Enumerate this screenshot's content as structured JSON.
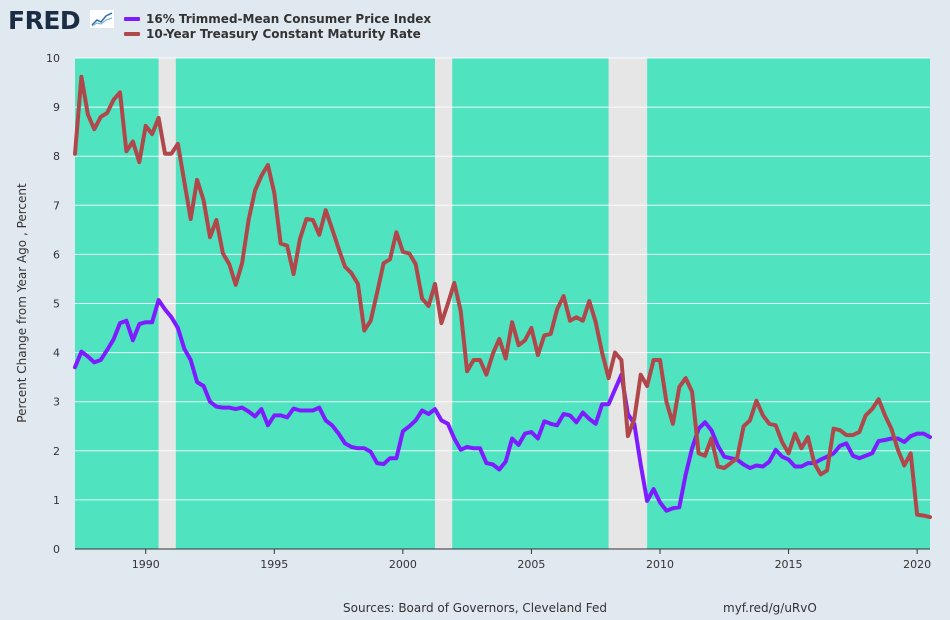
{
  "header": {
    "logo_text": "FRED",
    "legend": [
      {
        "label": "16% Trimmed-Mean Consumer Price Index",
        "color": "#7f1cff"
      },
      {
        "label": "10-Year Treasury Constant Maturity Rate",
        "color": "#b0484b"
      }
    ]
  },
  "footer": {
    "sources": "Sources: Board of Governors, Cleveland Fed",
    "url": "myf.red/g/uRvO"
  },
  "chart_data": {
    "type": "line",
    "title": "",
    "xlabel": "",
    "ylabel": "Percent Change from Year Ago , Percent",
    "xlim": [
      1987.25,
      2020.5
    ],
    "ylim": [
      0,
      10
    ],
    "x_ticks": [
      1990,
      1995,
      2000,
      2005,
      2010,
      2015,
      2020
    ],
    "y_ticks": [
      0,
      1,
      2,
      3,
      4,
      5,
      6,
      7,
      8,
      9,
      10
    ],
    "grid": true,
    "legend_position": "top-left",
    "background_color": "#4fe3c0",
    "band_color": "#e6e6e6",
    "bands": [
      [
        1990.5,
        1991.17
      ],
      [
        2001.25,
        2001.92
      ],
      [
        2008.0,
        2009.5
      ]
    ],
    "series": [
      {
        "name": "16% Trimmed-Mean Consumer Price Index",
        "color": "#7f1cff",
        "points": [
          [
            1987.25,
            3.7
          ],
          [
            1987.5,
            4.02
          ],
          [
            1987.75,
            3.92
          ],
          [
            1988.0,
            3.8
          ],
          [
            1988.25,
            3.85
          ],
          [
            1988.5,
            4.05
          ],
          [
            1988.75,
            4.27
          ],
          [
            1989.0,
            4.6
          ],
          [
            1989.25,
            4.65
          ],
          [
            1989.5,
            4.25
          ],
          [
            1989.75,
            4.58
          ],
          [
            1990.0,
            4.62
          ],
          [
            1990.25,
            4.62
          ],
          [
            1990.5,
            5.07
          ],
          [
            1990.75,
            4.88
          ],
          [
            1991.0,
            4.72
          ],
          [
            1991.25,
            4.5
          ],
          [
            1991.5,
            4.08
          ],
          [
            1991.75,
            3.85
          ],
          [
            1992.0,
            3.4
          ],
          [
            1992.25,
            3.32
          ],
          [
            1992.5,
            3.0
          ],
          [
            1992.75,
            2.9
          ],
          [
            1993.0,
            2.88
          ],
          [
            1993.25,
            2.88
          ],
          [
            1993.5,
            2.85
          ],
          [
            1993.75,
            2.88
          ],
          [
            1994.0,
            2.8
          ],
          [
            1994.25,
            2.7
          ],
          [
            1994.5,
            2.85
          ],
          [
            1994.75,
            2.52
          ],
          [
            1995.0,
            2.72
          ],
          [
            1995.25,
            2.72
          ],
          [
            1995.5,
            2.68
          ],
          [
            1995.75,
            2.86
          ],
          [
            1996.0,
            2.82
          ],
          [
            1996.25,
            2.82
          ],
          [
            1996.5,
            2.82
          ],
          [
            1996.75,
            2.88
          ],
          [
            1997.0,
            2.62
          ],
          [
            1997.25,
            2.52
          ],
          [
            1997.5,
            2.35
          ],
          [
            1997.75,
            2.15
          ],
          [
            1998.0,
            2.08
          ],
          [
            1998.25,
            2.05
          ],
          [
            1998.5,
            2.05
          ],
          [
            1998.75,
            1.98
          ],
          [
            1999.0,
            1.75
          ],
          [
            1999.25,
            1.73
          ],
          [
            1999.5,
            1.85
          ],
          [
            1999.75,
            1.85
          ],
          [
            2000.0,
            2.4
          ],
          [
            2000.25,
            2.5
          ],
          [
            2000.5,
            2.62
          ],
          [
            2000.75,
            2.82
          ],
          [
            2001.0,
            2.75
          ],
          [
            2001.25,
            2.85
          ],
          [
            2001.5,
            2.62
          ],
          [
            2001.75,
            2.55
          ],
          [
            2002.0,
            2.25
          ],
          [
            2002.25,
            2.02
          ],
          [
            2002.5,
            2.08
          ],
          [
            2002.75,
            2.05
          ],
          [
            2003.0,
            2.05
          ],
          [
            2003.25,
            1.75
          ],
          [
            2003.5,
            1.72
          ],
          [
            2003.75,
            1.62
          ],
          [
            2004.0,
            1.78
          ],
          [
            2004.25,
            2.25
          ],
          [
            2004.5,
            2.12
          ],
          [
            2004.75,
            2.35
          ],
          [
            2005.0,
            2.38
          ],
          [
            2005.25,
            2.25
          ],
          [
            2005.5,
            2.6
          ],
          [
            2005.75,
            2.55
          ],
          [
            2006.0,
            2.52
          ],
          [
            2006.25,
            2.75
          ],
          [
            2006.5,
            2.72
          ],
          [
            2006.75,
            2.58
          ],
          [
            2007.0,
            2.78
          ],
          [
            2007.25,
            2.65
          ],
          [
            2007.5,
            2.55
          ],
          [
            2007.75,
            2.95
          ],
          [
            2008.0,
            2.95
          ],
          [
            2008.25,
            3.25
          ],
          [
            2008.5,
            3.55
          ],
          [
            2008.75,
            2.75
          ],
          [
            2009.0,
            2.55
          ],
          [
            2009.25,
            1.72
          ],
          [
            2009.5,
            0.98
          ],
          [
            2009.75,
            1.22
          ],
          [
            2010.0,
            0.95
          ],
          [
            2010.25,
            0.78
          ],
          [
            2010.5,
            0.83
          ],
          [
            2010.75,
            0.85
          ],
          [
            2011.0,
            1.52
          ],
          [
            2011.25,
            2.05
          ],
          [
            2011.5,
            2.45
          ],
          [
            2011.75,
            2.58
          ],
          [
            2012.0,
            2.42
          ],
          [
            2012.25,
            2.1
          ],
          [
            2012.5,
            1.88
          ],
          [
            2012.75,
            1.85
          ],
          [
            2013.0,
            1.82
          ],
          [
            2013.25,
            1.72
          ],
          [
            2013.5,
            1.65
          ],
          [
            2013.75,
            1.7
          ],
          [
            2014.0,
            1.68
          ],
          [
            2014.25,
            1.78
          ],
          [
            2014.5,
            2.02
          ],
          [
            2014.75,
            1.88
          ],
          [
            2015.0,
            1.82
          ],
          [
            2015.25,
            1.68
          ],
          [
            2015.5,
            1.68
          ],
          [
            2015.75,
            1.75
          ],
          [
            2016.0,
            1.75
          ],
          [
            2016.25,
            1.82
          ],
          [
            2016.5,
            1.88
          ],
          [
            2016.75,
            1.95
          ],
          [
            2017.0,
            2.1
          ],
          [
            2017.25,
            2.15
          ],
          [
            2017.5,
            1.9
          ],
          [
            2017.75,
            1.85
          ],
          [
            2018.0,
            1.9
          ],
          [
            2018.25,
            1.95
          ],
          [
            2018.5,
            2.2
          ],
          [
            2018.75,
            2.22
          ],
          [
            2019.0,
            2.25
          ],
          [
            2019.25,
            2.25
          ],
          [
            2019.5,
            2.18
          ],
          [
            2019.75,
            2.3
          ],
          [
            2020.0,
            2.35
          ],
          [
            2020.25,
            2.35
          ],
          [
            2020.5,
            2.28
          ]
        ]
      },
      {
        "name": "10-Year Treasury Constant Maturity Rate",
        "color": "#b0484b",
        "points": [
          [
            1987.25,
            8.05
          ],
          [
            1987.5,
            9.62
          ],
          [
            1987.75,
            8.85
          ],
          [
            1988.0,
            8.55
          ],
          [
            1988.25,
            8.8
          ],
          [
            1988.5,
            8.88
          ],
          [
            1988.75,
            9.15
          ],
          [
            1989.0,
            9.3
          ],
          [
            1989.25,
            8.1
          ],
          [
            1989.5,
            8.3
          ],
          [
            1989.75,
            7.88
          ],
          [
            1990.0,
            8.62
          ],
          [
            1990.25,
            8.45
          ],
          [
            1990.5,
            8.78
          ],
          [
            1990.75,
            8.05
          ],
          [
            1991.0,
            8.05
          ],
          [
            1991.25,
            8.25
          ],
          [
            1991.5,
            7.48
          ],
          [
            1991.75,
            6.72
          ],
          [
            1992.0,
            7.52
          ],
          [
            1992.25,
            7.1
          ],
          [
            1992.5,
            6.35
          ],
          [
            1992.75,
            6.7
          ],
          [
            1993.0,
            6.02
          ],
          [
            1993.25,
            5.8
          ],
          [
            1993.5,
            5.38
          ],
          [
            1993.75,
            5.82
          ],
          [
            1994.0,
            6.7
          ],
          [
            1994.25,
            7.3
          ],
          [
            1994.5,
            7.6
          ],
          [
            1994.75,
            7.82
          ],
          [
            1995.0,
            7.25
          ],
          [
            1995.25,
            6.22
          ],
          [
            1995.5,
            6.18
          ],
          [
            1995.75,
            5.6
          ],
          [
            1996.0,
            6.32
          ],
          [
            1996.25,
            6.72
          ],
          [
            1996.5,
            6.7
          ],
          [
            1996.75,
            6.4
          ],
          [
            1997.0,
            6.9
          ],
          [
            1997.25,
            6.52
          ],
          [
            1997.5,
            6.12
          ],
          [
            1997.75,
            5.75
          ],
          [
            1998.0,
            5.62
          ],
          [
            1998.25,
            5.4
          ],
          [
            1998.5,
            4.45
          ],
          [
            1998.75,
            4.65
          ],
          [
            1999.0,
            5.22
          ],
          [
            1999.25,
            5.82
          ],
          [
            1999.5,
            5.9
          ],
          [
            1999.75,
            6.45
          ],
          [
            2000.0,
            6.05
          ],
          [
            2000.25,
            6.02
          ],
          [
            2000.5,
            5.8
          ],
          [
            2000.75,
            5.1
          ],
          [
            2001.0,
            4.95
          ],
          [
            2001.25,
            5.4
          ],
          [
            2001.5,
            4.6
          ],
          [
            2001.75,
            5.0
          ],
          [
            2002.0,
            5.42
          ],
          [
            2002.25,
            4.85
          ],
          [
            2002.5,
            3.62
          ],
          [
            2002.75,
            3.85
          ],
          [
            2003.0,
            3.85
          ],
          [
            2003.25,
            3.55
          ],
          [
            2003.5,
            3.98
          ],
          [
            2003.75,
            4.28
          ],
          [
            2004.0,
            3.88
          ],
          [
            2004.25,
            4.62
          ],
          [
            2004.5,
            4.15
          ],
          [
            2004.75,
            4.25
          ],
          [
            2005.0,
            4.5
          ],
          [
            2005.25,
            3.95
          ],
          [
            2005.5,
            4.35
          ],
          [
            2005.75,
            4.38
          ],
          [
            2006.0,
            4.88
          ],
          [
            2006.25,
            5.15
          ],
          [
            2006.5,
            4.65
          ],
          [
            2006.75,
            4.72
          ],
          [
            2007.0,
            4.65
          ],
          [
            2007.25,
            5.05
          ],
          [
            2007.5,
            4.62
          ],
          [
            2007.75,
            4.0
          ],
          [
            2008.0,
            3.48
          ],
          [
            2008.25,
            4.0
          ],
          [
            2008.5,
            3.85
          ],
          [
            2008.75,
            2.3
          ],
          [
            2009.0,
            2.65
          ],
          [
            2009.25,
            3.55
          ],
          [
            2009.5,
            3.32
          ],
          [
            2009.75,
            3.85
          ],
          [
            2010.0,
            3.85
          ],
          [
            2010.25,
            3.0
          ],
          [
            2010.5,
            2.55
          ],
          [
            2010.75,
            3.3
          ],
          [
            2011.0,
            3.48
          ],
          [
            2011.25,
            3.2
          ],
          [
            2011.5,
            1.95
          ],
          [
            2011.75,
            1.9
          ],
          [
            2012.0,
            2.25
          ],
          [
            2012.25,
            1.68
          ],
          [
            2012.5,
            1.65
          ],
          [
            2012.75,
            1.75
          ],
          [
            2013.0,
            1.85
          ],
          [
            2013.25,
            2.5
          ],
          [
            2013.5,
            2.62
          ],
          [
            2013.75,
            3.02
          ],
          [
            2014.0,
            2.72
          ],
          [
            2014.25,
            2.55
          ],
          [
            2014.5,
            2.52
          ],
          [
            2014.75,
            2.18
          ],
          [
            2015.0,
            1.95
          ],
          [
            2015.25,
            2.35
          ],
          [
            2015.5,
            2.05
          ],
          [
            2015.75,
            2.28
          ],
          [
            2016.0,
            1.75
          ],
          [
            2016.25,
            1.52
          ],
          [
            2016.5,
            1.6
          ],
          [
            2016.75,
            2.45
          ],
          [
            2017.0,
            2.42
          ],
          [
            2017.25,
            2.32
          ],
          [
            2017.5,
            2.32
          ],
          [
            2017.75,
            2.38
          ],
          [
            2018.0,
            2.72
          ],
          [
            2018.25,
            2.85
          ],
          [
            2018.5,
            3.05
          ],
          [
            2018.75,
            2.72
          ],
          [
            2019.0,
            2.45
          ],
          [
            2019.25,
            2.02
          ],
          [
            2019.5,
            1.7
          ],
          [
            2019.75,
            1.95
          ],
          [
            2020.0,
            0.7
          ],
          [
            2020.25,
            0.68
          ],
          [
            2020.5,
            0.65
          ]
        ]
      }
    ]
  }
}
